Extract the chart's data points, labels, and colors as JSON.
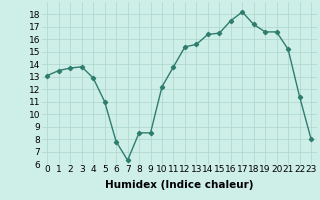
{
  "x": [
    0,
    1,
    2,
    3,
    4,
    5,
    6,
    7,
    8,
    9,
    10,
    11,
    12,
    13,
    14,
    15,
    16,
    17,
    18,
    19,
    20,
    21,
    22,
    23
  ],
  "y": [
    13.1,
    13.5,
    13.7,
    13.8,
    12.9,
    11.0,
    7.8,
    6.3,
    8.5,
    8.5,
    12.2,
    13.8,
    15.4,
    15.6,
    16.4,
    16.5,
    17.5,
    18.2,
    17.2,
    16.6,
    16.6,
    15.2,
    11.4,
    8.0
  ],
  "line_color": "#2e7d6e",
  "marker": "D",
  "marker_size": 2.2,
  "line_width": 1.0,
  "xlabel": "Humidex (Indice chaleur)",
  "xlabel_fontsize": 7.5,
  "xlabel_fontweight": "bold",
  "ylim": [
    6,
    19
  ],
  "xlim": [
    -0.5,
    23.5
  ],
  "yticks": [
    6,
    7,
    8,
    9,
    10,
    11,
    12,
    13,
    14,
    15,
    16,
    17,
    18
  ],
  "xticks": [
    0,
    1,
    2,
    3,
    4,
    5,
    6,
    7,
    8,
    9,
    10,
    11,
    12,
    13,
    14,
    15,
    16,
    17,
    18,
    19,
    20,
    21,
    22,
    23
  ],
  "tick_fontsize": 6.5,
  "bg_color": "#ceeee8",
  "grid_color": "#aed4ce",
  "grid_linewidth": 0.5
}
